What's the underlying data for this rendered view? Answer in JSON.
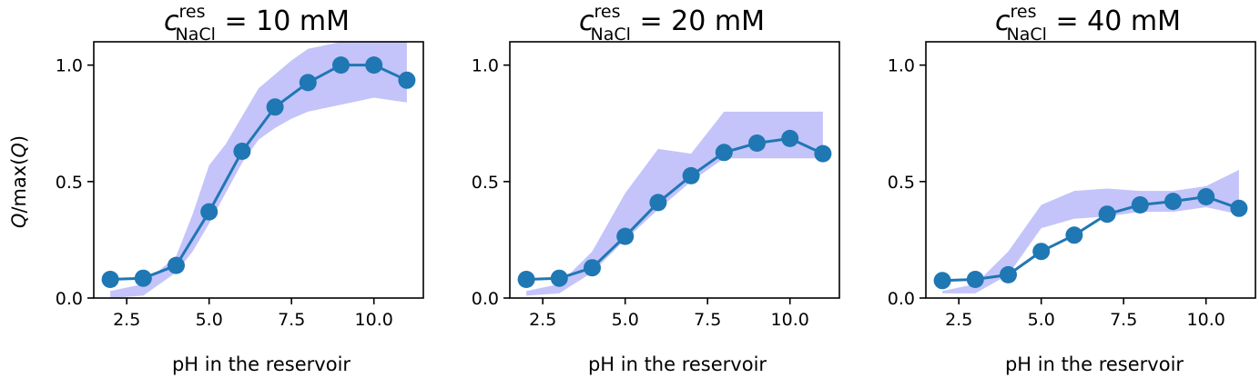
{
  "figure": {
    "ylabel": {
      "main": "Q",
      "middle": "/max(",
      "last": "Q",
      "end": ")"
    },
    "colors": {
      "line": "#1f77b4",
      "marker": "#1f77b4",
      "band": "#c4c4fa",
      "axes": "#000000"
    }
  },
  "chart_data": [
    {
      "type": "line",
      "title": {
        "symbol": "c",
        "superscript": "res",
        "subscript": "NaCl",
        "equals": " = 10 mM"
      },
      "xlabel": "pH in the reservoir",
      "xlim": [
        1.5,
        11.5
      ],
      "ylim": [
        0.0,
        1.1
      ],
      "xticks": [
        2.5,
        5.0,
        7.5,
        10.0
      ],
      "xtick_labels": [
        "2.5",
        "5.0",
        "7.5",
        "10.0"
      ],
      "yticks": [
        0.0,
        0.5,
        1.0
      ],
      "ytick_labels": [
        "0.0",
        "0.5",
        "1.0"
      ],
      "x": [
        2,
        3,
        4,
        5,
        6,
        7,
        8,
        9,
        10,
        11
      ],
      "y": [
        0.08,
        0.085,
        0.14,
        0.37,
        0.63,
        0.82,
        0.925,
        1.0,
        1.0,
        0.935
      ],
      "band_x": [
        2,
        3,
        4,
        4.5,
        5,
        5.5,
        6,
        6.5,
        7,
        7.5,
        8,
        9,
        10,
        11
      ],
      "band_low": [
        0.0,
        0.01,
        0.11,
        0.2,
        0.32,
        0.45,
        0.58,
        0.68,
        0.73,
        0.77,
        0.8,
        0.83,
        0.86,
        0.84
      ],
      "band_high": [
        0.03,
        0.06,
        0.18,
        0.36,
        0.57,
        0.66,
        0.78,
        0.9,
        0.96,
        1.02,
        1.07,
        1.1,
        1.1,
        1.1
      ],
      "grid": false
    },
    {
      "type": "line",
      "title": {
        "symbol": "c",
        "superscript": "res",
        "subscript": "NaCl",
        "equals": " = 20 mM"
      },
      "xlabel": "pH in the reservoir",
      "xlim": [
        1.5,
        11.5
      ],
      "ylim": [
        0.0,
        1.1
      ],
      "xticks": [
        2.5,
        5.0,
        7.5,
        10.0
      ],
      "xtick_labels": [
        "2.5",
        "5.0",
        "7.5",
        "10.0"
      ],
      "yticks": [
        0.0,
        0.5,
        1.0
      ],
      "ytick_labels": [
        "0.0",
        "0.5",
        "1.0"
      ],
      "x": [
        2,
        3,
        4,
        5,
        6,
        7,
        8,
        9,
        10,
        11
      ],
      "y": [
        0.08,
        0.085,
        0.13,
        0.265,
        0.41,
        0.525,
        0.625,
        0.665,
        0.685,
        0.62
      ],
      "band_x": [
        2,
        3,
        4,
        5,
        6,
        7,
        8,
        9,
        10,
        11
      ],
      "band_low": [
        0.01,
        0.02,
        0.11,
        0.25,
        0.38,
        0.5,
        0.6,
        0.6,
        0.6,
        0.6
      ],
      "band_high": [
        0.03,
        0.06,
        0.2,
        0.45,
        0.64,
        0.62,
        0.8,
        0.8,
        0.8,
        0.8
      ],
      "grid": false
    },
    {
      "type": "line",
      "title": {
        "symbol": "c",
        "superscript": "res",
        "subscript": "NaCl",
        "equals": " = 40 mM"
      },
      "xlabel": "pH in the reservoir",
      "xlim": [
        1.5,
        11.5
      ],
      "ylim": [
        0.0,
        1.1
      ],
      "xticks": [
        2.5,
        5.0,
        7.5,
        10.0
      ],
      "xtick_labels": [
        "2.5",
        "5.0",
        "7.5",
        "10.0"
      ],
      "yticks": [
        0.0,
        0.5,
        1.0
      ],
      "ytick_labels": [
        "0.0",
        "0.5",
        "1.0"
      ],
      "x": [
        2,
        3,
        4,
        5,
        6,
        7,
        8,
        9,
        10,
        11
      ],
      "y": [
        0.075,
        0.08,
        0.1,
        0.2,
        0.27,
        0.36,
        0.4,
        0.415,
        0.435,
        0.385
      ],
      "band_x": [
        2,
        3,
        4,
        5,
        6,
        7,
        8,
        9,
        10,
        11
      ],
      "band_low": [
        0.02,
        0.02,
        0.1,
        0.3,
        0.34,
        0.35,
        0.37,
        0.37,
        0.39,
        0.36
      ],
      "band_high": [
        0.03,
        0.06,
        0.2,
        0.4,
        0.46,
        0.47,
        0.46,
        0.46,
        0.48,
        0.55
      ],
      "grid": false
    }
  ]
}
